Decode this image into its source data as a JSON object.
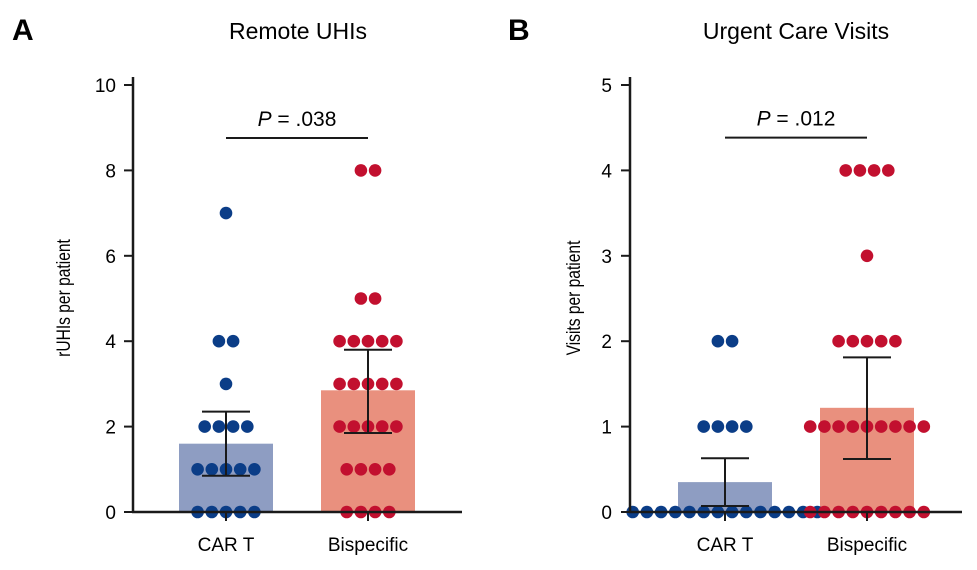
{
  "colors": {
    "car_t_bar": "#8e9dc2",
    "car_t_point": "#0b3d87",
    "bispecific_bar": "#e9907e",
    "bispecific_point": "#c2102f",
    "axis": "#1a1a1a"
  },
  "chart_data": [
    {
      "type": "bar",
      "panel": "A",
      "title": "Remote UHIs",
      "xlabel": "",
      "ylabel": "rUHIs per patient",
      "ylim": [
        0,
        10
      ],
      "yticks": [
        0,
        2,
        4,
        6,
        8,
        10
      ],
      "ytick_labels": [
        "0",
        "2",
        "4",
        "6",
        "8",
        "10"
      ],
      "categories": [
        "CAR T",
        "Bispecific"
      ],
      "values": [
        1.6,
        2.85
      ],
      "errors": [
        {
          "low": 0.85,
          "high": 2.35
        },
        {
          "low": 1.85,
          "high": 3.8
        }
      ],
      "points": [
        [
          7,
          4,
          4,
          3,
          2,
          2,
          2,
          2,
          1,
          1,
          1,
          1,
          1,
          0,
          0,
          0,
          0,
          0
        ],
        [
          8,
          8,
          5,
          5,
          4,
          4,
          4,
          4,
          4,
          3,
          3,
          3,
          3,
          3,
          2,
          2,
          2,
          2,
          2,
          1,
          1,
          1,
          1,
          0,
          0,
          0,
          0
        ]
      ],
      "annotation": {
        "p_label": "P",
        "p_value": " = .038",
        "y": 9.25
      }
    },
    {
      "type": "bar",
      "panel": "B",
      "title": "Urgent Care Visits",
      "xlabel": "",
      "ylabel": "Visits per patient",
      "ylim": [
        0,
        5
      ],
      "yticks": [
        0,
        1,
        2,
        3,
        4,
        5
      ],
      "ytick_labels": [
        "0",
        "1",
        "2",
        "3",
        "4",
        "5"
      ],
      "categories": [
        "CAR T",
        "Bispecific"
      ],
      "values": [
        0.35,
        1.22
      ],
      "errors": [
        {
          "low": 0.07,
          "high": 0.63
        },
        {
          "low": 0.62,
          "high": 1.81
        }
      ],
      "points": [
        [
          2,
          2,
          1,
          1,
          1,
          1,
          0,
          0,
          0,
          0,
          0,
          0,
          0,
          0,
          0,
          0,
          0,
          0,
          0,
          0
        ],
        [
          4,
          4,
          4,
          4,
          3,
          2,
          2,
          2,
          2,
          2,
          1,
          1,
          1,
          1,
          1,
          1,
          1,
          1,
          1,
          0,
          0,
          0,
          0,
          0,
          0,
          0,
          0,
          0
        ]
      ],
      "annotation": {
        "p_label": "P",
        "p_value": " = .012",
        "y": 4.63
      }
    }
  ]
}
